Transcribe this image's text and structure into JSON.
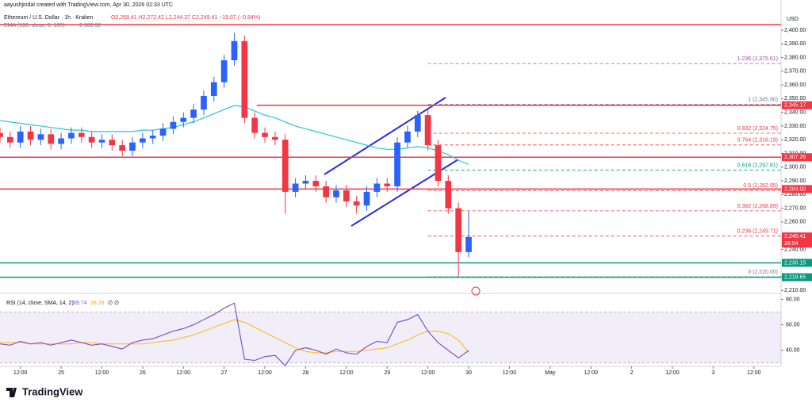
{
  "header": {
    "credit": "aayushjindal created with TradingView.com, Apr 30, 2026 02:33 UTC",
    "symbol": "Ethereum / U.S. Dollar · 1h · Kraken",
    "ohlc": "O2,268.41  H2,272.42  L2,244.37  C2,249.41  −19.07 (−0.84%)",
    "ema_label": "EMA (100, close, 0, 100)",
    "ema_value": "2,300.92",
    "currency": "USD",
    "rsi_label": "RSI (14, close, SMA, 14, 2)",
    "rsi_value": "39.74",
    "rsi_ma_value": "38.33",
    "rsi_extra": "∅  ∅",
    "brand": "TradingView"
  },
  "chart_data": {
    "type": "candlestick",
    "up_color": "#2962ff",
    "down_color": "#f23645",
    "x": [
      6,
      9,
      12,
      15,
      18,
      21,
      24,
      27,
      30,
      33,
      36,
      39,
      42,
      45,
      48,
      51,
      54,
      57,
      60,
      63,
      66,
      69,
      72,
      75,
      78,
      81,
      84,
      87,
      90,
      93,
      96,
      99,
      102,
      105,
      108,
      111,
      114,
      117,
      120,
      123,
      126,
      129,
      132,
      135,
      138,
      141,
      144
    ],
    "open": [
      2325,
      2322,
      2318,
      2326,
      2320,
      2324,
      2317,
      2321,
      2325,
      2322,
      2318,
      2320,
      2316,
      2312,
      2318,
      2321,
      2323,
      2328,
      2333,
      2336,
      2342,
      2352,
      2362,
      2378,
      2392,
      2336,
      2325,
      2322,
      2320,
      2282,
      2288,
      2290,
      2286,
      2278,
      2283,
      2275,
      2272,
      2282,
      2288,
      2286,
      2318,
      2326,
      2338,
      2316,
      2290,
      2270,
      2238
    ],
    "high": [
      2329,
      2326,
      2330,
      2330,
      2328,
      2328,
      2325,
      2329,
      2329,
      2326,
      2324,
      2324,
      2320,
      2322,
      2325,
      2327,
      2332,
      2337,
      2340,
      2346,
      2356,
      2366,
      2382,
      2398,
      2396,
      2340,
      2329,
      2326,
      2324,
      2292,
      2294,
      2294,
      2290,
      2287,
      2287,
      2279,
      2286,
      2292,
      2292,
      2322,
      2330,
      2341,
      2342,
      2320,
      2294,
      2274,
      2268
    ],
    "low": [
      2318,
      2314,
      2314,
      2316,
      2316,
      2313,
      2313,
      2317,
      2318,
      2314,
      2314,
      2312,
      2308,
      2308,
      2314,
      2317,
      2319,
      2324,
      2329,
      2332,
      2338,
      2348,
      2358,
      2374,
      2332,
      2321,
      2318,
      2316,
      2266,
      2278,
      2284,
      2282,
      2274,
      2274,
      2271,
      2266,
      2268,
      2278,
      2282,
      2282,
      2314,
      2322,
      2312,
      2286,
      2266,
      2220,
      2234
    ],
    "close": [
      2322,
      2318,
      2326,
      2320,
      2324,
      2317,
      2321,
      2325,
      2322,
      2318,
      2320,
      2316,
      2312,
      2318,
      2321,
      2323,
      2328,
      2333,
      2336,
      2342,
      2352,
      2362,
      2378,
      2392,
      2336,
      2325,
      2322,
      2320,
      2282,
      2288,
      2290,
      2286,
      2278,
      2283,
      2275,
      2272,
      2282,
      2288,
      2286,
      2318,
      2326,
      2338,
      2316,
      2290,
      2270,
      2238,
      2249
    ],
    "ema": {
      "name": "EMA",
      "color": "#26c6da",
      "values": [
        2334,
        2333,
        2332,
        2331,
        2330,
        2329,
        2328,
        2327,
        2327,
        2326,
        2326,
        2326,
        2326,
        2326,
        2327,
        2327,
        2328,
        2329,
        2331,
        2333,
        2336,
        2339,
        2342,
        2345,
        2344,
        2341,
        2338,
        2336,
        2333,
        2330,
        2328,
        2326,
        2324,
        2322,
        2320,
        2318,
        2316,
        2314,
        2313,
        2313,
        2314,
        2315,
        2314,
        2312,
        2309,
        2305,
        2302
      ]
    },
    "xlim": [
      6,
      236
    ],
    "xticks": [
      {
        "value": 12,
        "label": "12:00"
      },
      {
        "value": 24,
        "label": "25"
      },
      {
        "value": 36,
        "label": "12:00"
      },
      {
        "value": 48,
        "label": "26"
      },
      {
        "value": 60,
        "label": "12:00"
      },
      {
        "value": 72,
        "label": "27"
      },
      {
        "value": 84,
        "label": "12:00"
      },
      {
        "value": 96,
        "label": "28"
      },
      {
        "value": 108,
        "label": "12:00"
      },
      {
        "value": 120,
        "label": "29"
      },
      {
        "value": 132,
        "label": "12:00"
      },
      {
        "value": 144,
        "label": "30"
      },
      {
        "value": 156,
        "label": "12:00"
      },
      {
        "value": 168,
        "label": "May"
      },
      {
        "value": 180,
        "label": "12:00"
      },
      {
        "value": 192,
        "label": "2"
      },
      {
        "value": 204,
        "label": "12:00"
      },
      {
        "value": 216,
        "label": "3"
      },
      {
        "value": 228,
        "label": "12:00"
      }
    ],
    "ylim": [
      2209,
      2422
    ],
    "yticks": [
      {
        "value": 2400,
        "label": "2,400.00"
      },
      {
        "value": 2390,
        "label": "2,390.00"
      },
      {
        "value": 2380,
        "label": "2,380.00"
      },
      {
        "value": 2370,
        "label": "2,370.00"
      },
      {
        "value": 2360,
        "label": "2,360.00"
      },
      {
        "value": 2350,
        "label": "2,350.00"
      },
      {
        "value": 2340,
        "label": "2,340.00"
      },
      {
        "value": 2330,
        "label": "2,330.00"
      },
      {
        "value": 2320,
        "label": "2,320.00"
      },
      {
        "value": 2310,
        "label": "2,310.00"
      },
      {
        "value": 2300,
        "label": "2,300.00"
      },
      {
        "value": 2290,
        "label": "2,290.00"
      },
      {
        "value": 2280,
        "label": "2,280.00"
      },
      {
        "value": 2270,
        "label": "2,270.00"
      },
      {
        "value": 2260,
        "label": "2,260.00"
      },
      {
        "value": 2240,
        "label": "2,240.00"
      },
      {
        "value": 2220,
        "label": "2,220.00"
      },
      {
        "value": 2210,
        "label": "2,210.00"
      }
    ],
    "levels": [
      {
        "value": 2404,
        "color": "#f23645",
        "start": 6
      },
      {
        "value": 2345.17,
        "label": "2,345.17",
        "color": "#f23645",
        "start": 81.6
      },
      {
        "value": 2307.26,
        "label": "2,307.26",
        "color": "#f23645",
        "start": 6
      },
      {
        "value": 2284,
        "label": "2,284.00",
        "color": "#f23645",
        "start": 6
      },
      {
        "value": 2230.15,
        "label": "2,230.15",
        "color": "#089981",
        "start": 6
      },
      {
        "value": 2219.65,
        "label": "2,219.65",
        "color": "#089981",
        "start": 6
      }
    ],
    "current": {
      "value": 2249.41,
      "label": "2,249.41",
      "countdown": "26:54"
    },
    "fib": [
      {
        "value": 2375.61,
        "label": "1.236 (2,375.61)",
        "color": "#ab47bc"
      },
      {
        "value": 2345.9,
        "label": "1 (2,345.90)",
        "color": "#787b86"
      },
      {
        "value": 2324.75,
        "label": "0.832 (2,324.75)",
        "color": "#f23645"
      },
      {
        "value": 2316.19,
        "label": "0.764 (2,316.19)",
        "color": "#f23645"
      },
      {
        "value": 2297.81,
        "label": "0.618 (2,297.81)",
        "color": "#089981"
      },
      {
        "value": 2282.95,
        "label": "0.5 (2,282.95)",
        "color": "#f23645"
      },
      {
        "value": 2268.09,
        "label": "0.382 (2,268.09)",
        "color": "#f23645"
      },
      {
        "value": 2249.71,
        "label": "0.236 (2,249.71)",
        "color": "#f23645"
      },
      {
        "value": 2220,
        "label": "0 (2,220.00)",
        "color": "#787b86"
      }
    ],
    "fib_start": 132,
    "rsi": {
      "name": "RSI",
      "color": "#7e57c2",
      "values": [
        45,
        44,
        47,
        45,
        46,
        44,
        46,
        48,
        46,
        44,
        45,
        43,
        41,
        46,
        48,
        49,
        52,
        55,
        57,
        60,
        64,
        68,
        73,
        77,
        33,
        32,
        35,
        36,
        28,
        40,
        42,
        40,
        37,
        41,
        38,
        37,
        43,
        47,
        46,
        62,
        64,
        68,
        55,
        46,
        40,
        34,
        39.74
      ]
    },
    "rsi_ma": {
      "name": "RSI MA",
      "color": "#fbc02d",
      "values": [
        46,
        46,
        46,
        45,
        45,
        45,
        45,
        45,
        46,
        46,
        45,
        45,
        45,
        45,
        45,
        46,
        47,
        48,
        50,
        52,
        55,
        58,
        61,
        64,
        62,
        58,
        54,
        50,
        46,
        42,
        39,
        38,
        38,
        39,
        39,
        39,
        40,
        41,
        42,
        45,
        48,
        52,
        55,
        55,
        53,
        48,
        38.33
      ]
    },
    "rsi_ylim": [
      28,
      84
    ],
    "rsi_yticks": [
      {
        "value": 80,
        "label": "80.00"
      },
      {
        "value": 60,
        "label": "60.00"
      },
      {
        "value": 40,
        "label": "40.00"
      }
    ],
    "rsi_band": [
      30,
      70
    ]
  }
}
